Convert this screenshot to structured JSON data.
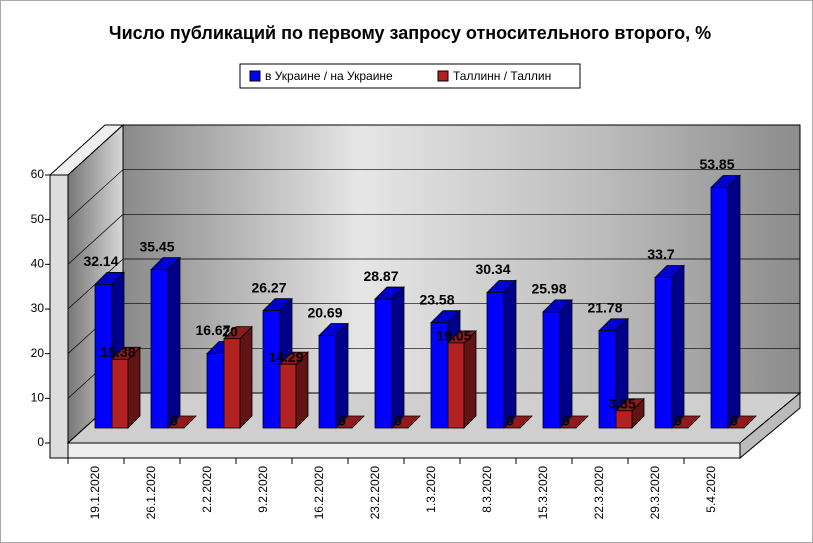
{
  "chart_data": {
    "type": "bar3d",
    "title": "Число публикаций по первому запросу относительного второго, %",
    "categories": [
      "19.1.2020",
      "26.1.2020",
      "2.2.2020",
      "9.2.2020",
      "16.2.2020",
      "23.2.2020",
      "1.3.2020",
      "8.3.2020",
      "15.3.2020",
      "22.3.2020",
      "29.3.2020",
      "5.4.2020"
    ],
    "series": [
      {
        "name": "в Украине / на Украине",
        "color": "#0000ff",
        "values": [
          32.14,
          35.45,
          16.67,
          26.27,
          20.69,
          28.87,
          23.58,
          30.34,
          25.98,
          21.78,
          33.7,
          53.85
        ]
      },
      {
        "name": "Таллинн / Таллин",
        "color": "#b22222",
        "values": [
          15.38,
          0,
          20,
          14.29,
          0,
          0,
          19.05,
          0,
          0,
          3.85,
          0,
          0
        ]
      }
    ],
    "ylim": [
      0,
      60
    ],
    "yticks": [
      0,
      10,
      20,
      30,
      40,
      50,
      60
    ],
    "grid": true
  }
}
